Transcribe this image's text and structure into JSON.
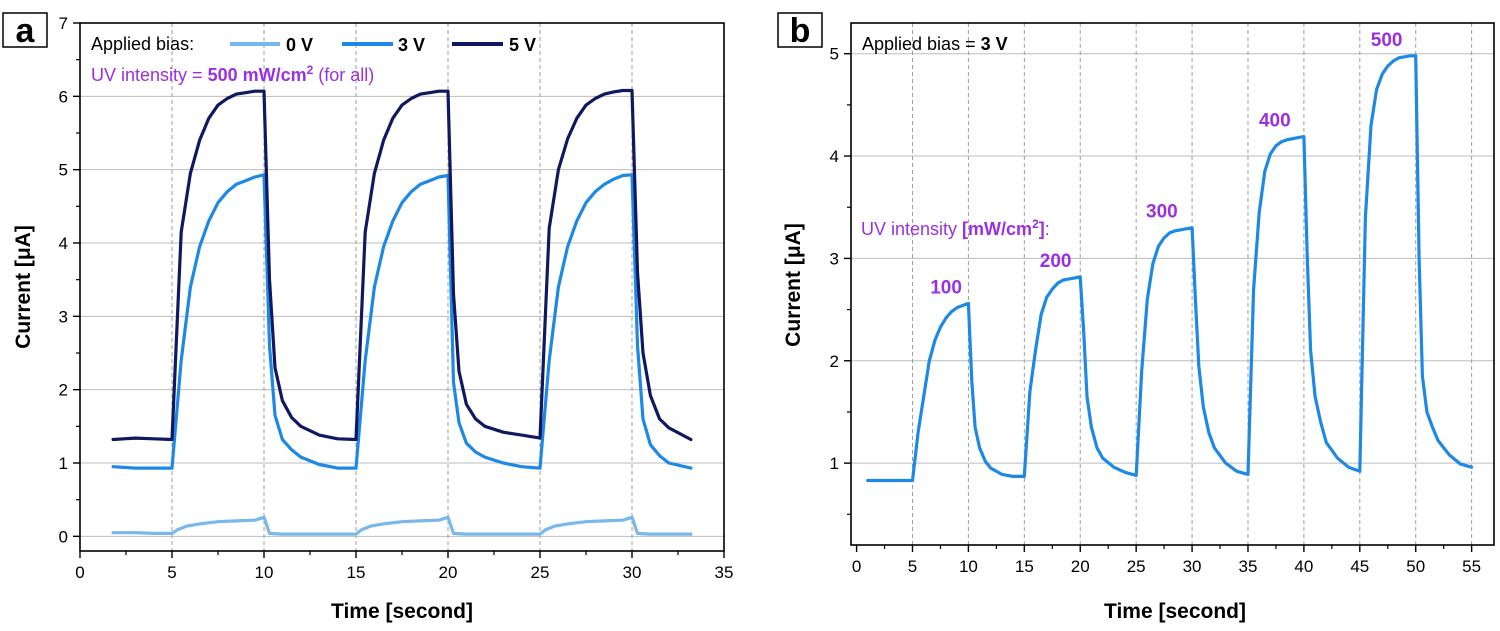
{
  "colors": {
    "series_0v": "#7ab8ec",
    "series_3v": "#1e88e5",
    "series_5v": "#101860",
    "annotation": "#9b30e0",
    "grid": "#bdbdbd",
    "vline": "#9e9e9e"
  },
  "chart_data": [
    {
      "panel": "a",
      "type": "line",
      "xlabel": "Time [second]",
      "ylabel": "Current [μA]",
      "xlim": [
        0,
        35
      ],
      "ylim": [
        -0.2,
        7
      ],
      "xticks": [
        0,
        5,
        10,
        15,
        20,
        25,
        30,
        35
      ],
      "yticks": [
        0,
        1,
        2,
        3,
        4,
        5,
        6,
        7
      ],
      "grid": "horizontal major gridlines; dashed vertical lines at 5-second intervals",
      "legend": {
        "placement": "top-left",
        "prefix": "Applied bias:",
        "entries": [
          "0 V",
          "3 V",
          "5 V"
        ]
      },
      "annotation": {
        "prefix": "UV intensity = ",
        "value": "500 mW/cm",
        "sup": "2",
        "suffix": " (for all)"
      },
      "series": [
        {
          "name": "0 V",
          "color_key": "series_0v",
          "x": [
            1.8,
            3,
            4,
            5,
            5.3,
            5.8,
            6.5,
            7.5,
            8.5,
            9.5,
            10,
            10.3,
            11,
            12,
            13,
            14,
            15,
            15.3,
            15.8,
            16.5,
            17.5,
            18.5,
            19.5,
            20,
            20.3,
            21,
            22,
            23,
            24,
            25,
            25.3,
            25.8,
            26.5,
            27.5,
            28.5,
            29.5,
            30,
            30.3,
            31,
            32,
            33.2
          ],
          "y": [
            0.05,
            0.05,
            0.04,
            0.04,
            0.09,
            0.14,
            0.17,
            0.2,
            0.21,
            0.22,
            0.26,
            0.04,
            0.03,
            0.03,
            0.03,
            0.03,
            0.03,
            0.09,
            0.14,
            0.17,
            0.2,
            0.21,
            0.22,
            0.26,
            0.04,
            0.03,
            0.03,
            0.03,
            0.03,
            0.03,
            0.09,
            0.14,
            0.17,
            0.2,
            0.21,
            0.22,
            0.26,
            0.04,
            0.03,
            0.03,
            0.03
          ]
        },
        {
          "name": "3 V",
          "color_key": "series_3v",
          "x": [
            1.8,
            3,
            4,
            5,
            5.5,
            6,
            6.5,
            7,
            7.5,
            8,
            8.5,
            9,
            9.5,
            10,
            10.3,
            10.6,
            11,
            11.5,
            12,
            13,
            14,
            15,
            15.5,
            16,
            16.5,
            17,
            17.5,
            18,
            18.5,
            19,
            19.5,
            20,
            20.3,
            20.6,
            21,
            21.5,
            22,
            23,
            24,
            25,
            25.5,
            26,
            26.5,
            27,
            27.5,
            28,
            28.5,
            29,
            29.5,
            30,
            30.3,
            30.6,
            31,
            31.5,
            32,
            33.2
          ],
          "y": [
            0.95,
            0.93,
            0.93,
            0.93,
            2.4,
            3.4,
            3.95,
            4.3,
            4.55,
            4.7,
            4.8,
            4.85,
            4.9,
            4.93,
            2.6,
            1.65,
            1.32,
            1.18,
            1.08,
            0.98,
            0.93,
            0.93,
            2.4,
            3.4,
            3.95,
            4.3,
            4.55,
            4.7,
            4.8,
            4.85,
            4.9,
            4.92,
            2.1,
            1.55,
            1.27,
            1.15,
            1.08,
            1.0,
            0.95,
            0.93,
            2.4,
            3.4,
            3.95,
            4.3,
            4.55,
            4.7,
            4.8,
            4.87,
            4.92,
            4.93,
            2.6,
            1.6,
            1.25,
            1.1,
            1.0,
            0.93
          ]
        },
        {
          "name": "5 V",
          "color_key": "series_5v",
          "x": [
            1.8,
            3,
            4,
            5,
            5.5,
            6,
            6.5,
            7,
            7.5,
            8,
            8.5,
            9,
            9.5,
            10,
            10.3,
            10.6,
            11,
            11.5,
            12,
            13,
            14,
            15,
            15.5,
            16,
            16.5,
            17,
            17.5,
            18,
            18.5,
            19,
            19.5,
            20,
            20.3,
            20.6,
            21,
            21.5,
            22,
            23,
            24,
            25,
            25.5,
            26,
            26.5,
            27,
            27.5,
            28,
            28.5,
            29,
            29.5,
            30,
            30.3,
            30.6,
            31,
            31.5,
            32,
            33.2
          ],
          "y": [
            1.32,
            1.34,
            1.33,
            1.32,
            4.15,
            4.95,
            5.4,
            5.7,
            5.88,
            5.97,
            6.03,
            6.05,
            6.07,
            6.07,
            3.5,
            2.3,
            1.85,
            1.62,
            1.5,
            1.38,
            1.33,
            1.32,
            4.15,
            4.95,
            5.4,
            5.7,
            5.88,
            5.97,
            6.03,
            6.05,
            6.07,
            6.07,
            3.3,
            2.25,
            1.8,
            1.6,
            1.5,
            1.42,
            1.38,
            1.34,
            4.2,
            5.0,
            5.42,
            5.7,
            5.88,
            5.97,
            6.03,
            6.06,
            6.08,
            6.08,
            3.6,
            2.5,
            1.92,
            1.6,
            1.48,
            1.32
          ]
        }
      ]
    },
    {
      "panel": "b",
      "type": "line",
      "xlabel": "Time [second]",
      "ylabel": "Current [μA]",
      "xlim": [
        -0.5,
        57
      ],
      "ylim": [
        0.2,
        5.3
      ],
      "xticks": [
        0,
        5,
        10,
        15,
        20,
        25,
        30,
        35,
        40,
        45,
        50,
        55
      ],
      "yticks": [
        1,
        2,
        3,
        4,
        5
      ],
      "grid": "horizontal major gridlines; dashed vertical lines at 5-second intervals",
      "legend": {
        "placement": "top-left",
        "prefix": "Applied bias = ",
        "value": "3 V"
      },
      "annotation": {
        "prefix": "UV intensity ",
        "value": "[mW/cm",
        "sup": "2",
        "suffix": "]",
        "tail": ":"
      },
      "series": [
        {
          "name": "3 V",
          "color_key": "series_3v",
          "x": [
            1,
            2,
            3,
            4,
            5,
            5.5,
            6,
            6.5,
            7,
            7.5,
            8,
            8.5,
            9,
            9.5,
            10,
            10.3,
            10.6,
            11,
            11.5,
            12,
            13,
            14,
            15,
            15.5,
            16,
            16.5,
            17,
            17.5,
            18,
            18.5,
            19,
            19.5,
            20,
            20.3,
            20.6,
            21,
            21.5,
            22,
            23,
            24,
            25,
            25.5,
            26,
            26.5,
            27,
            27.5,
            28,
            28.5,
            29,
            29.5,
            30,
            30.3,
            30.6,
            31,
            31.5,
            32,
            33,
            34,
            35,
            35.5,
            36,
            36.5,
            37,
            37.5,
            38,
            38.5,
            39,
            39.5,
            40,
            40.3,
            40.6,
            41,
            41.5,
            42,
            43,
            44,
            45,
            45.5,
            46,
            46.5,
            47,
            47.5,
            48,
            48.5,
            49,
            49.5,
            50,
            50.3,
            50.6,
            51,
            51.5,
            52,
            53,
            54,
            55
          ],
          "y": [
            0.83,
            0.83,
            0.83,
            0.83,
            0.83,
            1.3,
            1.65,
            2.0,
            2.2,
            2.33,
            2.42,
            2.48,
            2.52,
            2.54,
            2.56,
            1.8,
            1.35,
            1.15,
            1.02,
            0.95,
            0.89,
            0.87,
            0.87,
            1.7,
            2.1,
            2.45,
            2.62,
            2.7,
            2.76,
            2.79,
            2.8,
            2.81,
            2.82,
            2.3,
            1.65,
            1.35,
            1.15,
            1.05,
            0.96,
            0.91,
            0.88,
            1.9,
            2.6,
            2.95,
            3.12,
            3.2,
            3.25,
            3.27,
            3.28,
            3.29,
            3.3,
            2.6,
            1.95,
            1.55,
            1.3,
            1.15,
            1.0,
            0.92,
            0.89,
            2.7,
            3.45,
            3.85,
            4.02,
            4.1,
            4.14,
            4.16,
            4.17,
            4.18,
            4.19,
            3.0,
            2.1,
            1.65,
            1.4,
            1.2,
            1.05,
            0.96,
            0.92,
            3.4,
            4.3,
            4.65,
            4.8,
            4.88,
            4.93,
            4.96,
            4.97,
            4.98,
            4.98,
            3.0,
            1.85,
            1.5,
            1.35,
            1.22,
            1.08,
            0.99,
            0.96
          ]
        }
      ],
      "data_labels": [
        {
          "x": 8.0,
          "y": 2.56,
          "text": "100"
        },
        {
          "x": 17.8,
          "y": 2.82,
          "text": "200"
        },
        {
          "x": 27.3,
          "y": 3.3,
          "text": "300"
        },
        {
          "x": 37.4,
          "y": 4.19,
          "text": "400"
        },
        {
          "x": 47.4,
          "y": 4.98,
          "text": "500"
        }
      ]
    }
  ]
}
